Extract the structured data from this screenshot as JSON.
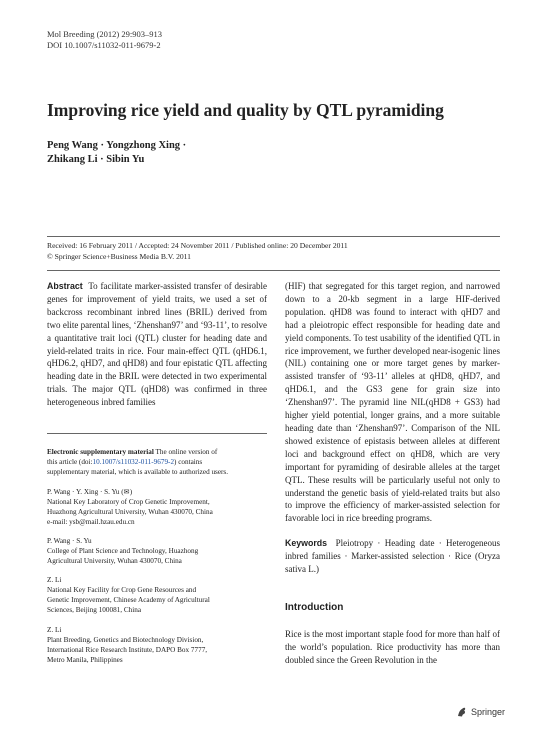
{
  "journal": {
    "citation": "Mol Breeding (2012) 29:903–913",
    "doi": "DOI 10.1007/s11032-011-9679-2"
  },
  "title": "Improving rice yield and quality by QTL pyramiding",
  "authors": {
    "line1": "Peng Wang · Yongzhong Xing ·",
    "line2": "Zhikang Li · Sibin Yu"
  },
  "dates": {
    "received": "Received: 16 February 2011 / Accepted: 24 November 2011 / Published online: 20 December 2011",
    "copyright": "© Springer Science+Business Media B.V. 2011"
  },
  "abstract": {
    "label": "Abstract",
    "left_text": "To facilitate marker-assisted transfer of desirable genes for improvement of yield traits, we used a set of backcross recombinant inbred lines (BRIL) derived from two elite parental lines, ‘Zhenshan97’ and ‘93-11’, to resolve a quantitative trait loci (QTL) cluster for heading date and yield-related traits in rice. Four main-effect QTL (qHD6.1, qHD6.2, qHD7, and qHD8) and four epistatic QTL affecting heading date in the BRIL were detected in two experimental trials. The major QTL (qHD8) was confirmed in three heterogeneous inbred families",
    "right_text": "(HIF) that segregated for this target region, and narrowed down to a 20-kb segment in a large HIF-derived population. qHD8 was found to interact with qHD7 and had a pleiotropic effect responsible for heading date and yield components. To test usability of the identified QTL in rice improvement, we further developed near-isogenic lines (NIL) containing one or more target genes by marker-assisted transfer of ‘93-11’ alleles at qHD8, qHD7, and qHD6.1, and the GS3 gene for grain size into ‘Zhenshan97’. The pyramid line NIL(qHD8 + GS3) had higher yield potential, longer grains, and a more suitable heading date than ‘Zhenshan97’. Comparison of the NIL showed existence of epistasis between alleles at different loci and background effect on qHD8, which are very important for pyramiding of desirable alleles at the target QTL. These results will be particularly useful not only to understand the genetic basis of yield-related traits but also to improve the efficiency of marker-assisted selection for favorable loci in rice breeding programs."
  },
  "keywords": {
    "label": "Keywords",
    "text": "Pleiotropy · Heading date · Heterogeneous inbred families · Marker-assisted selection · Rice (Oryza sativa L.)"
  },
  "esm": {
    "label": "Electronic supplementary material",
    "line1_text": "The online version of",
    "line2_pre": "this article (doi:",
    "line2_link": "10.1007/s11032-011-9679-2",
    "line2_post": ") contains",
    "line3": "supplementary material, which is available to authorized users."
  },
  "affiliations": [
    {
      "lines": [
        "P. Wang · Y. Xing · S. Yu (✉)",
        "National Key Laboratory of Crop Genetic Improvement,",
        "Huazhong Agricultural University, Wuhan 430070, China",
        "e-mail: ysb@mail.hzau.edu.cn"
      ]
    },
    {
      "lines": [
        "P. Wang · S. Yu",
        "College of Plant Science and Technology, Huazhong",
        "Agricultural University, Wuhan 430070, China"
      ]
    },
    {
      "lines": [
        "Z. Li",
        "National Key Facility for Crop Gene Resources and",
        "Genetic Improvement, Chinese Academy of Agricultural",
        "Sciences, Beijing 100081, China"
      ]
    },
    {
      "lines": [
        "Z. Li",
        "Plant Breeding, Genetics and Biotechnology Division,",
        "International Rice Research Institute, DAPO Box 7777,",
        "Metro Manila, Philippines"
      ]
    }
  ],
  "introduction": {
    "heading": "Introduction",
    "text": "Rice is the most important staple food for more than half of the world’s population. Rice productivity has more than doubled since the Green Revolution in the"
  },
  "footer": {
    "publisher": "Springer"
  }
}
